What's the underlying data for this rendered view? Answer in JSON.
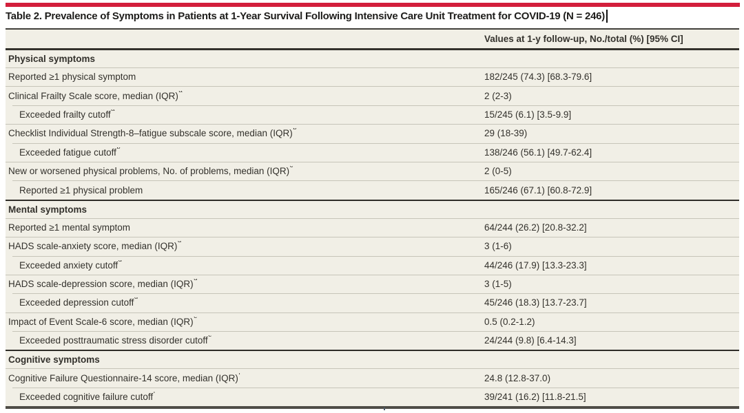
{
  "title": "Table 2. Prevalence of Symptoms in Patients at 1-Year Survival Following Intensive Care Unit Treatment for COVID-19 (N = 246)",
  "colors": {
    "accent_red_bar": "#d31f3c",
    "table_background": "#f1efe6",
    "row_separator": "#c6c4b8",
    "section_border": "#2e2c27",
    "text": "#33312c"
  },
  "table": {
    "value_column_header": "Values at 1-y follow-up, No./total (%) [95% CI]",
    "rows": [
      {
        "type": "section",
        "label": "Physical symptoms"
      },
      {
        "type": "data",
        "indent": false,
        "label": "Reported ≥1 physical symptom",
        "sup": "",
        "value": "182/245 (74.3) [68.3-79.6]"
      },
      {
        "type": "data",
        "indent": false,
        "label": "Clinical Frailty Scale score, median (IQR)",
        "sup": "a",
        "value": "2 (2-3)"
      },
      {
        "type": "data",
        "indent": true,
        "label": "Exceeded frailty cutoff",
        "sup": "a",
        "value": "15/245 (6.1) [3.5-9.9]"
      },
      {
        "type": "data",
        "indent": false,
        "label": "Checklist Individual Strength-8–fatigue subscale score, median (IQR)",
        "sup": "b",
        "value": "29 (18-39)"
      },
      {
        "type": "data",
        "indent": true,
        "label": "Exceeded fatigue cutoff",
        "sup": "b",
        "value": "138/246 (56.1) [49.7-62.4]"
      },
      {
        "type": "data",
        "indent": false,
        "label": "New or worsened physical problems, No. of problems, median (IQR)",
        "sup": "c",
        "value": "2 (0-5)"
      },
      {
        "type": "data",
        "indent": true,
        "label": "Reported ≥1 physical problem",
        "sup": "",
        "value": "165/246 (67.1) [60.8-72.9]"
      },
      {
        "type": "section",
        "label": "Mental symptoms"
      },
      {
        "type": "data",
        "indent": false,
        "label": "Reported ≥1 mental symptom",
        "sup": "",
        "value": "64/244 (26.2) [20.8-32.2]"
      },
      {
        "type": "data",
        "indent": false,
        "label": "HADS scale-anxiety score, median (IQR)",
        "sup": "d",
        "value": "3 (1-6)"
      },
      {
        "type": "data",
        "indent": true,
        "label": "Exceeded anxiety cutoff",
        "sup": "d",
        "value": "44/246 (17.9) [13.3-23.3]"
      },
      {
        "type": "data",
        "indent": false,
        "label": "HADS scale-depression score, median (IQR)",
        "sup": "d",
        "value": "3 (1-5)"
      },
      {
        "type": "data",
        "indent": true,
        "label": "Exceeded depression cutoff",
        "sup": "d",
        "value": "45/246 (18.3) [13.7-23.7]"
      },
      {
        "type": "data",
        "indent": false,
        "label": "Impact of Event Scale-6 score, median (IQR)",
        "sup": "e",
        "value": "0.5 (0.2-1.2)"
      },
      {
        "type": "data",
        "indent": true,
        "label": "Exceeded posttraumatic stress disorder cutoff",
        "sup": "e",
        "value": "24/244 (9.8) [6.4-14.3]"
      },
      {
        "type": "section",
        "label": "Cognitive symptoms"
      },
      {
        "type": "data",
        "indent": false,
        "label": "Cognitive Failure Questionnaire-14 score, median (IQR)",
        "sup": "f",
        "value": "24.8 (12.8-37.0)"
      },
      {
        "type": "data",
        "indent": true,
        "label": "Exceeded cognitive failure cutoff",
        "sup": "f",
        "value": "39/241 (16.2) [11.8-21.5]"
      }
    ]
  }
}
